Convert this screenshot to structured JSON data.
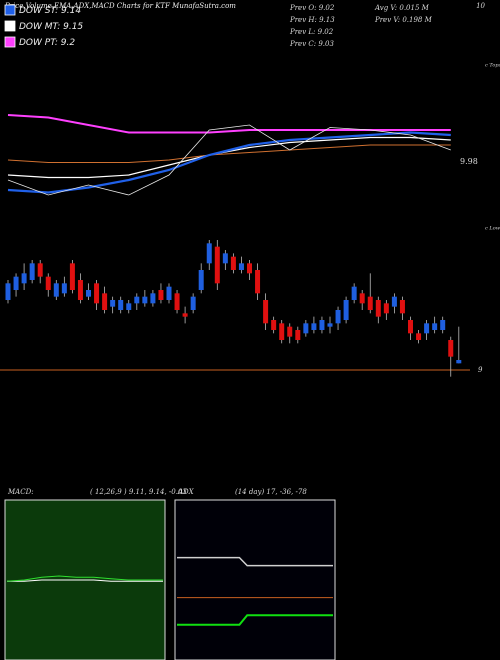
{
  "header": {
    "title": "Price,Volume,EMA,ADX,MACD Charts for KTF MunafaSutra.com",
    "legend": [
      {
        "label": "DOW ST: 9.14",
        "color": "#2060e8"
      },
      {
        "label": "DOW MT: 9.15",
        "color": "#ffffff"
      },
      {
        "label": "DOW PT: 9.2",
        "color": "#ff40ff"
      }
    ],
    "prev": [
      "Prev  O: 9.02",
      "Prev  H: 9.13",
      "Prev  L: 9.02",
      "Prev  C: 9.03"
    ],
    "volume": [
      "Avg V: 0.015 M",
      "Prev  V: 0.198 M"
    ],
    "top_right": "10"
  },
  "chart_data": [
    {
      "type": "line",
      "annotations": [
        "c Tops",
        "9.98"
      ],
      "x": [
        0,
        5,
        10,
        15,
        20,
        25,
        30,
        35,
        40,
        45,
        50,
        55
      ],
      "ylim": [
        8.9,
        9.5
      ],
      "series": [
        {
          "name": "DOW PT",
          "color": "#ff40ff",
          "width": 2,
          "values": [
            9.28,
            9.27,
            9.24,
            9.21,
            9.21,
            9.21,
            9.22,
            9.22,
            9.22,
            9.22,
            9.22,
            9.22
          ]
        },
        {
          "name": "Orange EMA",
          "color": "#d07030",
          "width": 1,
          "values": [
            9.1,
            9.09,
            9.09,
            9.09,
            9.1,
            9.12,
            9.13,
            9.14,
            9.15,
            9.16,
            9.16,
            9.16
          ]
        },
        {
          "name": "DOW MT",
          "color": "#ffffff",
          "width": 1.2,
          "values": [
            9.04,
            9.03,
            9.03,
            9.04,
            9.08,
            9.12,
            9.15,
            9.17,
            9.18,
            9.19,
            9.19,
            9.18
          ]
        },
        {
          "name": "DOW ST",
          "color": "#2060e8",
          "width": 2.2,
          "values": [
            8.98,
            8.97,
            8.99,
            9.02,
            9.06,
            9.12,
            9.16,
            9.18,
            9.19,
            9.2,
            9.21,
            9.2
          ]
        },
        {
          "name": "Price",
          "color": "#e8e8e8",
          "width": 0.8,
          "values": [
            9.02,
            8.96,
            9.0,
            8.96,
            9.04,
            9.22,
            9.24,
            9.14,
            9.23,
            9.22,
            9.2,
            9.14
          ]
        }
      ]
    },
    {
      "type": "candlestick",
      "annotations": [
        "c Lows"
      ],
      "up_color": "#1f5fe0",
      "down_color": "#e01010",
      "line_color": "#c86020",
      "ylim": [
        8.97,
        9.39
      ],
      "yticks": [
        9
      ],
      "open": [
        9.21,
        9.24,
        9.26,
        9.27,
        9.32,
        9.28,
        9.22,
        9.23,
        9.32,
        9.27,
        9.22,
        9.26,
        9.23,
        9.19,
        9.18,
        9.18,
        9.2,
        9.2,
        9.2,
        9.24,
        9.21,
        9.23,
        9.17,
        9.18,
        9.24,
        9.32,
        9.37,
        9.32,
        9.34,
        9.3,
        9.32,
        9.3,
        9.21,
        9.15,
        9.14,
        9.13,
        9.12,
        9.11,
        9.12,
        9.12,
        9.13,
        9.14,
        9.15,
        9.21,
        9.23,
        9.22,
        9.21,
        9.2,
        9.19,
        9.21,
        9.15,
        9.11,
        9.11,
        9.12,
        9.12,
        9.09,
        9.02
      ],
      "high": [
        9.27,
        9.29,
        9.32,
        9.33,
        9.33,
        9.29,
        9.27,
        9.28,
        9.33,
        9.29,
        9.26,
        9.27,
        9.25,
        9.22,
        9.22,
        9.21,
        9.23,
        9.24,
        9.24,
        9.26,
        9.26,
        9.24,
        9.19,
        9.23,
        9.32,
        9.39,
        9.39,
        9.36,
        9.35,
        9.34,
        9.33,
        9.32,
        9.23,
        9.16,
        9.15,
        9.14,
        9.13,
        9.15,
        9.16,
        9.16,
        9.16,
        9.19,
        9.22,
        9.26,
        9.24,
        9.29,
        9.22,
        9.21,
        9.23,
        9.22,
        9.16,
        9.12,
        9.15,
        9.16,
        9.16,
        9.1,
        9.13
      ],
      "low": [
        9.2,
        9.22,
        9.24,
        9.26,
        9.26,
        9.22,
        9.21,
        9.22,
        9.23,
        9.2,
        9.21,
        9.18,
        9.17,
        9.17,
        9.17,
        9.17,
        9.18,
        9.19,
        9.19,
        9.2,
        9.2,
        9.17,
        9.14,
        9.17,
        9.23,
        9.3,
        9.24,
        9.3,
        9.29,
        9.29,
        9.27,
        9.21,
        9.12,
        9.11,
        9.08,
        9.08,
        9.08,
        9.1,
        9.11,
        9.11,
        9.11,
        9.12,
        9.14,
        9.2,
        9.18,
        9.17,
        9.14,
        9.15,
        9.17,
        9.15,
        9.09,
        9.08,
        9.09,
        9.11,
        9.11,
        8.98,
        9.02
      ],
      "close": [
        9.26,
        9.28,
        9.29,
        9.32,
        9.28,
        9.24,
        9.26,
        9.26,
        9.24,
        9.21,
        9.24,
        9.2,
        9.18,
        9.21,
        9.21,
        9.2,
        9.22,
        9.22,
        9.23,
        9.21,
        9.25,
        9.18,
        9.16,
        9.22,
        9.3,
        9.38,
        9.26,
        9.35,
        9.3,
        9.32,
        9.29,
        9.23,
        9.14,
        9.12,
        9.09,
        9.1,
        9.09,
        9.14,
        9.14,
        9.15,
        9.14,
        9.18,
        9.21,
        9.25,
        9.2,
        9.18,
        9.16,
        9.17,
        9.22,
        9.17,
        9.11,
        9.09,
        9.14,
        9.14,
        9.15,
        9.04,
        9.03
      ]
    },
    {
      "type": "line",
      "title": "MACD:",
      "subtitle": "( 12,26,9 ) 9.11, 9.14, -0.03",
      "background": "#0b3a0b",
      "x": [
        0,
        1,
        2,
        3,
        4,
        5,
        6,
        7,
        8,
        9
      ],
      "ylim": [
        8.5,
        9.7
      ],
      "series": [
        {
          "name": "MACD",
          "color": "#ffffff",
          "width": 1,
          "values": [
            9.09,
            9.09,
            9.1,
            9.1,
            9.1,
            9.1,
            9.09,
            9.09,
            9.09,
            9.09
          ]
        },
        {
          "name": "Signal",
          "color": "#30e030",
          "width": 1,
          "values": [
            9.09,
            9.1,
            9.12,
            9.13,
            9.12,
            9.12,
            9.11,
            9.1,
            9.1,
            9.1
          ]
        }
      ]
    },
    {
      "type": "line",
      "title": "ADX",
      "subtitle": "(14  day) 17,  -36,  -78",
      "background": "#000008",
      "x": [
        0,
        8,
        9,
        20
      ],
      "ylim": [
        0,
        100
      ],
      "series": [
        {
          "name": "ADX",
          "color": "#d0d0d0",
          "width": 1.5,
          "values": [
            64,
            64,
            59,
            59
          ]
        },
        {
          "name": "Level",
          "color": "#c86020",
          "width": 1,
          "values": [
            39,
            39,
            39,
            39
          ]
        },
        {
          "name": "DI",
          "color": "#10e010",
          "width": 2,
          "values": [
            22,
            22,
            28,
            28
          ]
        }
      ]
    }
  ]
}
